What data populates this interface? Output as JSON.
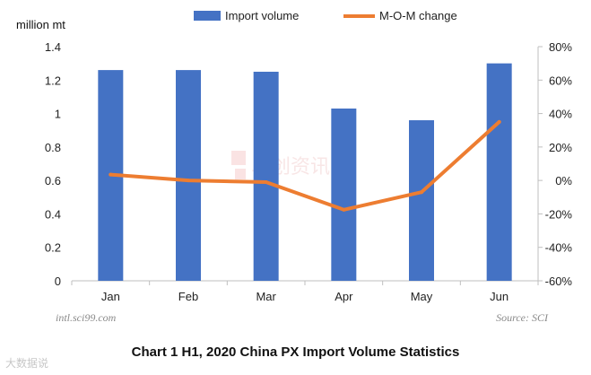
{
  "chart_data": {
    "type": "bar",
    "title": "Chart 1 H1, 2020 China PX Import Volume Statistics",
    "categories": [
      "Jan",
      "Feb",
      "Mar",
      "Apr",
      "May",
      "Jun"
    ],
    "ylabel": "million mt",
    "ylim": [
      0,
      1.4
    ],
    "y_ticks": [
      "0",
      "0.2",
      "0.4",
      "0.6",
      "0.8",
      "1",
      "1.2",
      "1.4"
    ],
    "y2lim": [
      -60,
      80
    ],
    "y2_ticks": [
      "-60%",
      "-40%",
      "-20%",
      "0%",
      "20%",
      "40%",
      "60%",
      "80%"
    ],
    "legend_position": "top",
    "grid": false,
    "series": [
      {
        "name": "Import volume",
        "kind": "bar",
        "axis": "left",
        "color": "#4472C4",
        "values": [
          1.26,
          1.26,
          1.25,
          1.03,
          0.96,
          1.3
        ]
      },
      {
        "name": "M-O-M change",
        "kind": "line",
        "axis": "right",
        "color": "#ED7D31",
        "values": [
          3.5,
          0.0,
          -1.0,
          -17.5,
          -7.0,
          35.0
        ]
      }
    ]
  },
  "footer": {
    "website": "intl.sci99.com",
    "source": "Source: SCI",
    "watermark": "大数据说"
  }
}
